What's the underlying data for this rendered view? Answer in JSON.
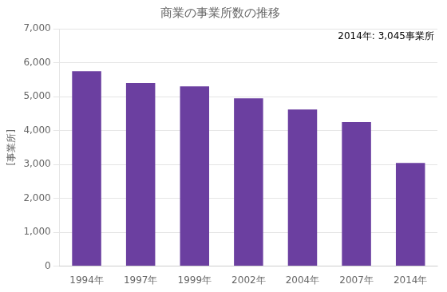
{
  "chart_data": {
    "type": "bar",
    "title": "商業の事業所数の推移",
    "ylabel": "[事業所]",
    "annotation": "2014年: 3,045事業所",
    "categories": [
      "1994年",
      "1997年",
      "1999年",
      "2002年",
      "2004年",
      "2007年",
      "2014年"
    ],
    "values": [
      5750,
      5400,
      5300,
      4950,
      4620,
      4250,
      3045
    ],
    "color": "#6b3fa0",
    "ylim": [
      0,
      7000
    ],
    "yticks": [
      0,
      {
        "value": 1000,
        "label": "1,000"
      },
      {
        "value": 2000,
        "label": "2,000"
      },
      {
        "value": 3000,
        "label": "3,000"
      },
      {
        "value": 4000,
        "label": "4,000"
      },
      {
        "value": 5000,
        "label": "5,000"
      },
      {
        "value": 6000,
        "label": "6,000"
      },
      {
        "value": 7000,
        "label": "7,000"
      }
    ],
    "grid": true
  }
}
